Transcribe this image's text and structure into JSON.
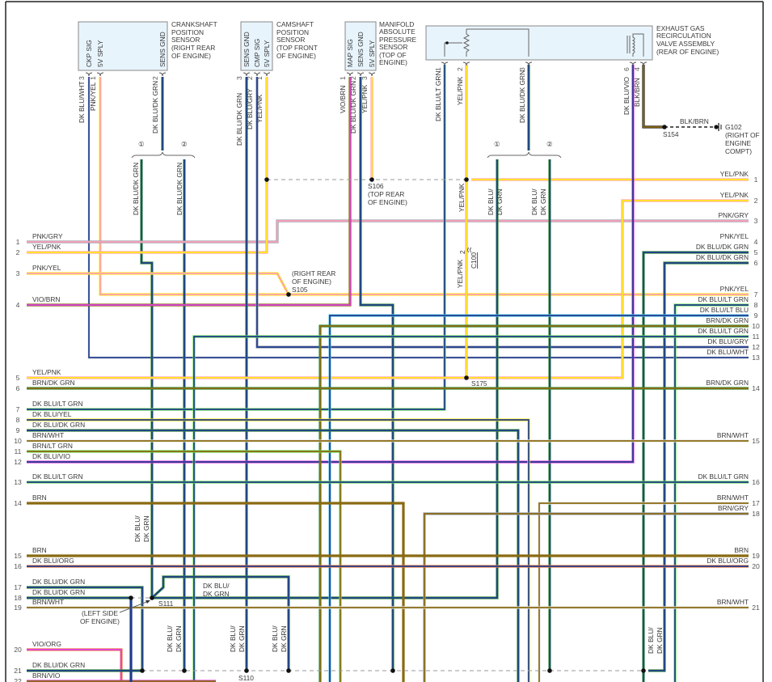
{
  "components": {
    "crankshaft": {
      "title": [
        "CRANKSHAFT",
        "POSITION",
        "SENSOR",
        "(RIGHT REAR",
        "OF ENGINE)"
      ],
      "pins": [
        {
          "num": "3",
          "name": "CKP SIG",
          "wire": "DK BLU/WHT"
        },
        {
          "num": "1",
          "name": "5V SPLY",
          "wire": "PNK/YEL"
        },
        {
          "num": "2",
          "name": "SENS GND",
          "wire": "DK BLU/DK GRN"
        }
      ]
    },
    "camshaft": {
      "title": [
        "CAMSHAFT",
        "POSITION",
        "SENSOR",
        "(TOP FRONT",
        "OF ENGINE)"
      ],
      "pins": [
        {
          "num": "3",
          "name": "SENS GND",
          "wire": "DK BLU/DK GRN"
        },
        {
          "num": "2",
          "name": "CMP SIG",
          "wire": "DK BLU/GRY"
        },
        {
          "num": "1",
          "name": "5V SPLY",
          "wire": "YEL/PNK"
        }
      ]
    },
    "map": {
      "title": [
        "MANIFOLD",
        "ABSOLUTE",
        "PRESSURE",
        "SENSOR",
        "(TOP OF",
        "ENGINE)"
      ],
      "pins": [
        {
          "num": "1",
          "name": "MAP SIG",
          "wire": "VIO/BRN"
        },
        {
          "num": "2",
          "name": "SENS GND",
          "wire": "DK BLU/DK GRN"
        },
        {
          "num": "3",
          "name": "5V SPLY",
          "wire": "YEL/PNK"
        }
      ]
    },
    "egr": {
      "title": [
        "EXHAUST GAS",
        "RECIRCULATION",
        "VALVE ASSEMBLY",
        "(REAR OF ENGINE)"
      ],
      "pins": [
        {
          "num": "1",
          "wire": "DK BLU/LT GRN"
        },
        {
          "num": "2",
          "wire": "YEL/PNK"
        },
        {
          "num": "3",
          "wire": "DK BLU/DK GRN"
        },
        {
          "num": "6",
          "wire": "DK BLU/VIO"
        },
        {
          "num": "4",
          "wire": "BLK/BRN"
        }
      ]
    }
  },
  "left_connector": [
    {
      "num": "1",
      "wire": "PNK/GRY"
    },
    {
      "num": "2",
      "wire": "YEL/PNK"
    },
    {
      "num": "3",
      "wire": "PNK/YEL"
    },
    {
      "num": "4",
      "wire": "VIO/BRN"
    },
    {
      "num": "5",
      "wire": "YEL/PNK"
    },
    {
      "num": "6",
      "wire": "BRN/DK GRN"
    },
    {
      "num": "7",
      "wire": "DK BLU/LT GRN"
    },
    {
      "num": "8",
      "wire": "DK BLU/YEL"
    },
    {
      "num": "9",
      "wire": "DK BLU/DK GRN"
    },
    {
      "num": "10",
      "wire": "BRN/WHT"
    },
    {
      "num": "11",
      "wire": "BRN/LT GRN"
    },
    {
      "num": "12",
      "wire": "DK BLU/VIO"
    },
    {
      "num": "13",
      "wire": "DK BLU/LT GRN"
    },
    {
      "num": "14",
      "wire": "BRN"
    },
    {
      "num": "15",
      "wire": "BRN"
    },
    {
      "num": "16",
      "wire": "DK BLU/ORG"
    },
    {
      "num": "17",
      "wire": "DK BLU/DK GRN"
    },
    {
      "num": "18",
      "wire": "DK BLU/DK GRN"
    },
    {
      "num": "19",
      "wire": "BRN/WHT"
    },
    {
      "num": "20",
      "wire": "VIO/ORG"
    },
    {
      "num": "21",
      "wire": "DK BLU/DK GRN"
    },
    {
      "num": "22",
      "wire": "BRN/VIO"
    }
  ],
  "right_connector": [
    {
      "num": "1",
      "wire": "YEL/PNK"
    },
    {
      "num": "2",
      "wire": "YEL/PNK"
    },
    {
      "num": "3",
      "wire": "PNK/GRY"
    },
    {
      "num": "4",
      "wire": "PNK/YEL"
    },
    {
      "num": "5",
      "wire": "DK BLU/DK GRN"
    },
    {
      "num": "6",
      "wire": "DK BLU/DK GRN"
    },
    {
      "num": "7",
      "wire": "PNK/YEL"
    },
    {
      "num": "8",
      "wire": "DK BLU/LT GRN"
    },
    {
      "num": "9",
      "wire": "DK BLU/LT BLU"
    },
    {
      "num": "10",
      "wire": "BRN/DK GRN"
    },
    {
      "num": "11",
      "wire": "DK BLU/LT GRN"
    },
    {
      "num": "12",
      "wire": "DK BLU/GRY"
    },
    {
      "num": "13",
      "wire": "DK BLU/WHT"
    },
    {
      "num": "14",
      "wire": "BRN/DK GRN"
    },
    {
      "num": "15",
      "wire": "BRN/WHT"
    },
    {
      "num": "16",
      "wire": "DK BLU/LT GRN"
    },
    {
      "num": "17",
      "wire": "BRN/WHT"
    },
    {
      "num": "18",
      "wire": "BRN/GRY"
    },
    {
      "num": "19",
      "wire": "BRN"
    },
    {
      "num": "20",
      "wire": "DK BLU/ORG"
    },
    {
      "num": "21",
      "wire": "BRN/WHT"
    }
  ],
  "splices": {
    "s105": {
      "id": "S105",
      "location": [
        "(RIGHT REAR",
        "OF ENGINE)"
      ]
    },
    "s106": {
      "id": "S106",
      "location": [
        "(TOP REAR",
        "OF ENGINE)"
      ]
    },
    "s110": {
      "id": "S110"
    },
    "s111": {
      "id": "S111",
      "location": [
        "(LEFT SIDE",
        "OF ENGINE)"
      ]
    },
    "s154": {
      "id": "S154",
      "wire": "BLK/BRN"
    },
    "s175": {
      "id": "S175"
    },
    "g102": {
      "id": "G102",
      "location": [
        "(RIGHT OF",
        "ENGINE",
        "COMPT)"
      ]
    },
    "c100": {
      "id": "C100",
      "pin": "2"
    }
  },
  "branch_marks": [
    "①",
    "②"
  ],
  "wire_labels": {
    "yel_pnk": "YEL/PNK",
    "dkblu_dkgrn": "DK BLU/DK GRN",
    "dkblu_split": [
      "DK BLU/",
      "DK GRN"
    ]
  },
  "wire_colors": {
    "DKBLU": "#1f3c8c",
    "DKGRN": "#3a8f3a",
    "LTGRN": "#6fe05a",
    "LTBLU": "#5cc8f0",
    "PNK": "#ff9fb4",
    "YEL": "#ffea1a",
    "VIO": "#e040e0",
    "BRN": "#8a6a12",
    "ORG": "#f07a40",
    "WHT": "#e8e8e8",
    "GRY": "#9aa0b0",
    "BLK": "#222222"
  }
}
